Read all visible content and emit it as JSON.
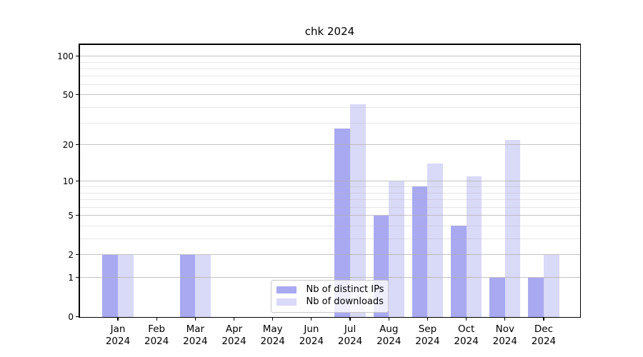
{
  "title": "chk 2024",
  "chart_data": {
    "type": "bar",
    "title": "chk 2024",
    "months": [
      "Jan",
      "Feb",
      "Mar",
      "Apr",
      "May",
      "Jun",
      "Jul",
      "Aug",
      "Sep",
      "Oct",
      "Nov",
      "Dec"
    ],
    "year_label": "2024",
    "series": [
      {
        "name": "Nb of distinct IPs",
        "color": "#a9a9f2",
        "values": [
          2,
          0,
          2,
          0,
          0,
          0,
          27,
          5,
          9,
          4,
          1,
          1
        ]
      },
      {
        "name": "Nb of downloads",
        "color": "#d9d9f8",
        "values": [
          2,
          0,
          2,
          0,
          0,
          0,
          42,
          10,
          14,
          11,
          22,
          2
        ]
      }
    ],
    "y_scale": "log10(1+x)",
    "y_axis_ticks": [
      0,
      1,
      2,
      5,
      10,
      20,
      50,
      100
    ],
    "y_minor_gridlines": [
      3,
      4,
      6,
      7,
      8,
      9,
      30,
      40,
      60,
      70,
      80,
      90
    ],
    "ylim": [
      0,
      125
    ],
    "grid": "both",
    "legend_position": "inside-bottom-center-right"
  },
  "legend": {
    "items": [
      {
        "label": "Nb of distinct IPs",
        "color": "#a9a9f2"
      },
      {
        "label": "Nb of downloads",
        "color": "#d9d9f8"
      }
    ]
  },
  "colors": {
    "background": "#ffffff",
    "axis": "#000000",
    "major_grid": "rgba(176,176,176,0.75)",
    "minor_grid": "rgba(176,176,176,0.30)",
    "bar_distinct_ips": "#a9a9f2",
    "bar_downloads": "#d9d9f8"
  }
}
